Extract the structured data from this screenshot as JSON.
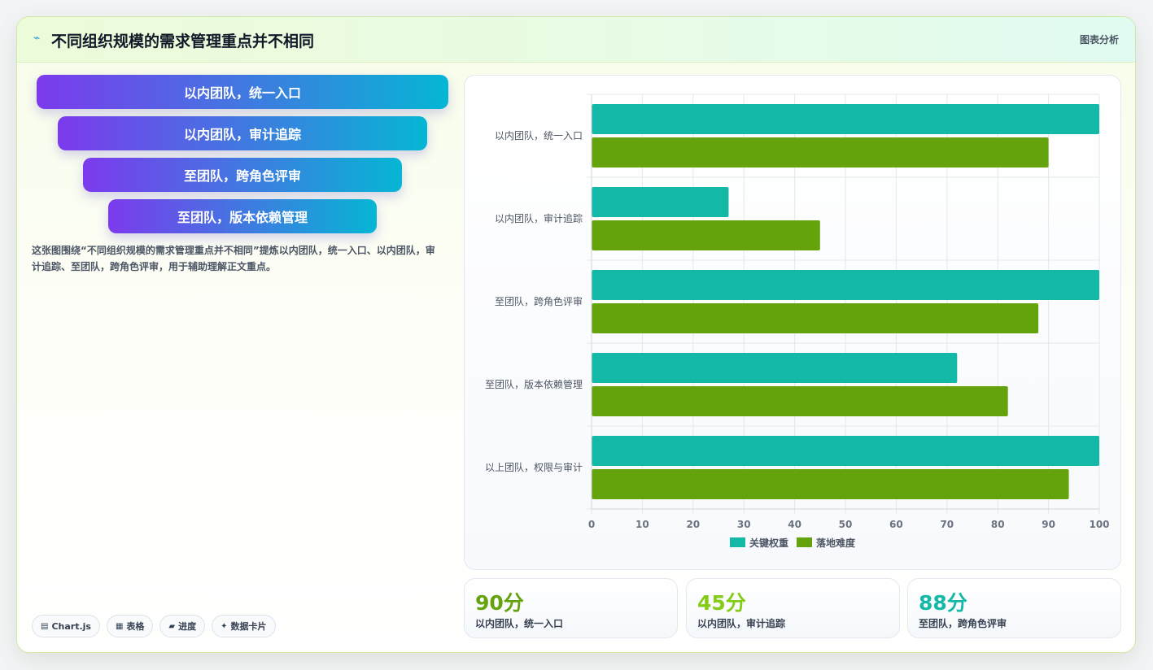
{
  "header": {
    "icon": "chart-line-icon",
    "title": "不同组织规模的需求管理重点并不相同",
    "tag": "图表分析"
  },
  "pills": [
    "以内团队，统一入口",
    "以内团队，审计追踪",
    "至团队，跨角色评审",
    "至团队，版本依赖管理"
  ],
  "description": "这张图围绕“不同组织规模的需求管理重点并不相同”提炼以内团队，统一入口、以内团队，审计追踪、至团队，跨角色评审，用于辅助理解正文重点。",
  "chips": [
    {
      "icon": "▤",
      "label": "Chart.js"
    },
    {
      "icon": "▦",
      "label": "表格"
    },
    {
      "icon": "▰",
      "label": "进度"
    },
    {
      "icon": "✦",
      "label": "数据卡片"
    }
  ],
  "chart_data": {
    "type": "bar",
    "orientation": "horizontal",
    "categories": [
      "以内团队，统一入口",
      "以内团队，审计追踪",
      "至团队，跨角色评审",
      "至团队，版本依赖管理",
      "以上团队，权限与审计"
    ],
    "series": [
      {
        "name": "关键权重",
        "color": "#14b8a6",
        "values": [
          100,
          27,
          100,
          72,
          100
        ]
      },
      {
        "name": "落地难度",
        "color": "#65a30d",
        "values": [
          90,
          45,
          88,
          82,
          94
        ]
      }
    ],
    "xlim": [
      0,
      100
    ],
    "xticks": [
      0,
      10,
      20,
      30,
      40,
      50,
      60,
      70,
      80,
      90,
      100
    ],
    "grid": true,
    "legend": "bottom"
  },
  "kpis": [
    {
      "value": "90分",
      "label": "以内团队，统一入口",
      "color": "#65a30d"
    },
    {
      "value": "45分",
      "label": "以内团队，审计追踪",
      "color": "#84cc16"
    },
    {
      "value": "88分",
      "label": "至团队，跨角色评审",
      "color": "#14b8a6"
    }
  ]
}
